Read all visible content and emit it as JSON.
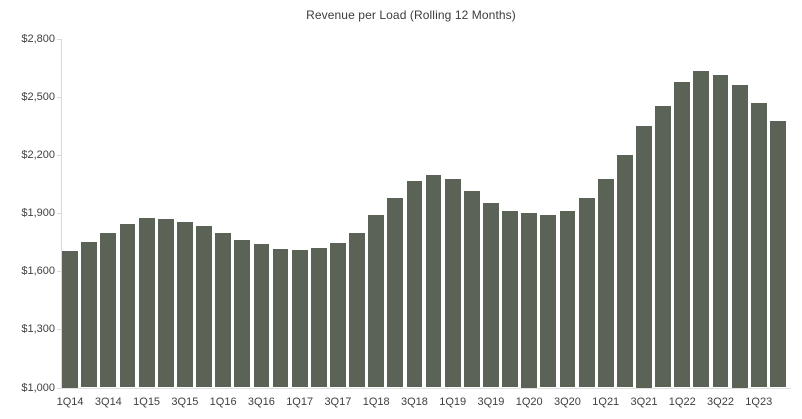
{
  "colors": {
    "bar": "#5a6356",
    "axis": "#d9d9d9",
    "baseline": "#e2e2e2",
    "text": "#3f3f3f"
  },
  "chart_data": {
    "type": "bar",
    "title": "Revenue per Load (Rolling 12 Months)",
    "categories": [
      "1Q14",
      "2Q14",
      "3Q14",
      "4Q14",
      "1Q15",
      "2Q15",
      "3Q15",
      "4Q15",
      "1Q16",
      "2Q16",
      "3Q16",
      "4Q16",
      "1Q17",
      "2Q17",
      "3Q17",
      "4Q17",
      "1Q18",
      "2Q18",
      "3Q18",
      "4Q18",
      "1Q19",
      "2Q19",
      "3Q19",
      "4Q19",
      "1Q20",
      "2Q20",
      "3Q20",
      "4Q20",
      "1Q21",
      "2Q21",
      "3Q21",
      "4Q21",
      "1Q22",
      "2Q22",
      "3Q22",
      "4Q22",
      "1Q23",
      "2Q23"
    ],
    "values": [
      1705,
      1750,
      1800,
      1845,
      1875,
      1870,
      1855,
      1835,
      1800,
      1760,
      1740,
      1715,
      1710,
      1720,
      1745,
      1800,
      1890,
      1980,
      2065,
      2100,
      2075,
      2015,
      1955,
      1910,
      1900,
      1890,
      1910,
      1980,
      2075,
      2200,
      2350,
      2455,
      2580,
      2635,
      2615,
      2565,
      2470,
      2375
    ],
    "x_tick_label_every": 2,
    "y_tick_labels": [
      "$2,800",
      "$2,500",
      "$2,200",
      "$1,900",
      "$1,600",
      "$1,300",
      "$1,000"
    ],
    "y_tick_values": [
      2800,
      2500,
      2200,
      1900,
      1600,
      1300,
      1000
    ],
    "ylim": [
      1000,
      2800
    ],
    "xlabel": "",
    "ylabel": "",
    "grid": false,
    "legend": null
  }
}
